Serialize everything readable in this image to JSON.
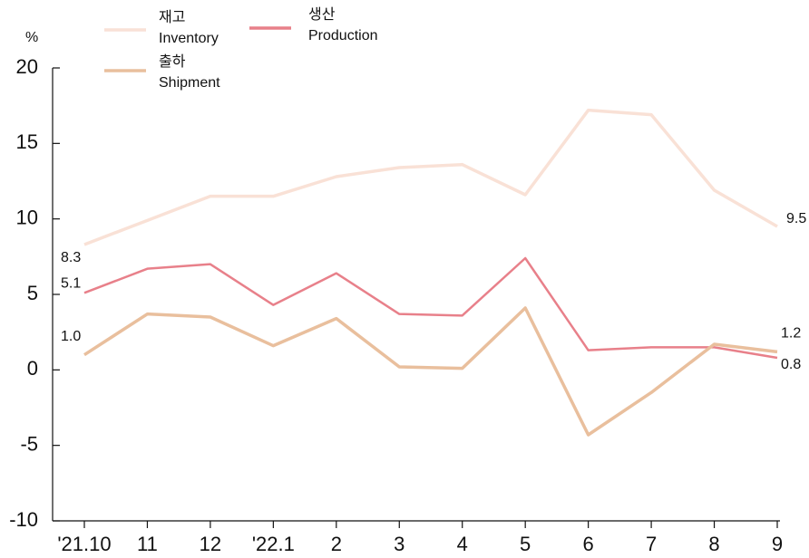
{
  "chart_data": {
    "type": "line",
    "y_label": "%",
    "categories": [
      "'21.10",
      "11",
      "12",
      "'22.1",
      "2",
      "3",
      "4",
      "5",
      "6",
      "7",
      "8",
      "9"
    ],
    "series": [
      {
        "name": "재고\nInventory",
        "color": "#f9e1d6",
        "values": [
          8.3,
          9.9,
          11.5,
          11.5,
          12.8,
          13.4,
          13.6,
          11.6,
          17.2,
          16.9,
          11.9,
          9.5
        ],
        "value_labels": [
          "8.3",
          null,
          null,
          null,
          null,
          null,
          null,
          null,
          null,
          null,
          null,
          "9.5"
        ]
      },
      {
        "name": "생산\nProduction",
        "color": "#e8808a",
        "values": [
          5.1,
          6.7,
          7.0,
          4.3,
          6.4,
          3.7,
          3.6,
          7.4,
          1.3,
          1.5,
          1.5,
          0.8
        ],
        "value_labels": [
          "5.1",
          null,
          null,
          null,
          null,
          null,
          null,
          null,
          null,
          null,
          null,
          "0.8"
        ]
      },
      {
        "name": "출하\nShipment",
        "color": "#e9bf9d",
        "values": [
          1.0,
          3.7,
          3.5,
          1.6,
          3.4,
          0.2,
          0.1,
          4.1,
          -4.3,
          -1.5,
          1.7,
          1.2
        ],
        "value_labels": [
          "1.0",
          null,
          null,
          null,
          null,
          null,
          null,
          null,
          null,
          null,
          null,
          "1.2"
        ]
      }
    ],
    "ylim": [
      -10,
      20
    ],
    "yticks": [
      -10,
      -5,
      0,
      5,
      10,
      15,
      20
    ]
  }
}
